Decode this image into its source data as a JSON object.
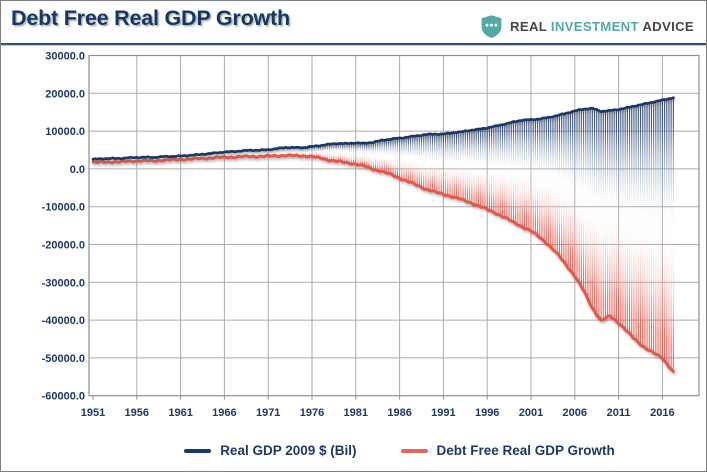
{
  "header": {
    "title": "Debt Free Real GDP Growth",
    "logo": {
      "icon": "shield-dots-icon",
      "word1": "REAL",
      "word2": "INVESTMENT",
      "word3": "ADVICE"
    }
  },
  "colors": {
    "navy": "#1f3864",
    "red": "#e4584c",
    "legend_red": "#e2685e",
    "teal": "#55a9a3",
    "grid": "#ababab",
    "plot_border": "#8e8e8e"
  },
  "chart_data": {
    "type": "line",
    "title": "Debt Free Real GDP Growth",
    "xlabel": "",
    "ylabel": "",
    "xlim": [
      1951,
      2017.25
    ],
    "ylim": [
      -60000,
      30000
    ],
    "grid": true,
    "legend_position": "bottom",
    "style_note": "two stepped quarterly lines joined by thin vertical gradient high-low lines (navy fading to white then red)",
    "x_tick_labels": [
      "1951",
      "1956",
      "1961",
      "1966",
      "1971",
      "1976",
      "1981",
      "1986",
      "1991",
      "1996",
      "2001",
      "2006",
      "2011",
      "2016"
    ],
    "y_ticks": [
      30000,
      20000,
      10000,
      0,
      -10000,
      -20000,
      -30000,
      -40000,
      -50000,
      -60000
    ],
    "x": [
      1951,
      1952,
      1953,
      1954,
      1955,
      1956,
      1957,
      1958,
      1959,
      1960,
      1961,
      1962,
      1963,
      1964,
      1965,
      1966,
      1967,
      1968,
      1969,
      1970,
      1971,
      1972,
      1973,
      1974,
      1975,
      1976,
      1977,
      1978,
      1979,
      1980,
      1981,
      1982,
      1983,
      1984,
      1985,
      1986,
      1987,
      1988,
      1989,
      1990,
      1991,
      1992,
      1993,
      1994,
      1995,
      1996,
      1997,
      1998,
      1999,
      2000,
      2001,
      2002,
      2003,
      2004,
      2005,
      2006,
      2007,
      2008,
      2009,
      2010,
      2011,
      2012,
      2013,
      2014,
      2015,
      2016,
      2017
    ],
    "series": [
      {
        "name": "Real GDP 2009 $ (Bil)",
        "color": "#1f3864",
        "values": [
          2550,
          2660,
          2770,
          2750,
          2940,
          3010,
          3070,
          3030,
          3240,
          3310,
          3390,
          3590,
          3750,
          3960,
          4210,
          4460,
          4570,
          4780,
          4930,
          4940,
          5100,
          5370,
          5660,
          5640,
          5620,
          5910,
          6180,
          6530,
          6730,
          6710,
          6880,
          6750,
          7060,
          7570,
          7870,
          8140,
          8420,
          8770,
          9070,
          9210,
          9200,
          9530,
          9790,
          10190,
          10460,
          10840,
          11330,
          11840,
          12400,
          12910,
          13010,
          13230,
          13590,
          14110,
          14710,
          15350,
          15810,
          16010,
          15220,
          15420,
          15720,
          16210,
          16710,
          17210,
          17710,
          18210,
          18700
        ]
      },
      {
        "name": "Debt Free Real GDP Growth",
        "color": "#e4584c",
        "values": [
          1700,
          1780,
          1860,
          1850,
          2000,
          2100,
          2150,
          2120,
          2300,
          2380,
          2480,
          2600,
          2700,
          2820,
          2950,
          3060,
          3130,
          3220,
          3280,
          3280,
          3350,
          3460,
          3530,
          3480,
          3420,
          3250,
          2850,
          2300,
          1950,
          1600,
          1300,
          700,
          -100,
          -700,
          -1450,
          -2450,
          -3350,
          -4350,
          -5350,
          -6050,
          -6750,
          -7350,
          -8050,
          -8850,
          -9750,
          -10700,
          -11750,
          -12850,
          -14150,
          -15300,
          -16450,
          -18100,
          -20100,
          -22500,
          -25300,
          -28400,
          -32200,
          -36800,
          -40200,
          -38900,
          -40700,
          -43100,
          -45400,
          -47300,
          -48700,
          -50000,
          -53000
        ]
      }
    ]
  }
}
